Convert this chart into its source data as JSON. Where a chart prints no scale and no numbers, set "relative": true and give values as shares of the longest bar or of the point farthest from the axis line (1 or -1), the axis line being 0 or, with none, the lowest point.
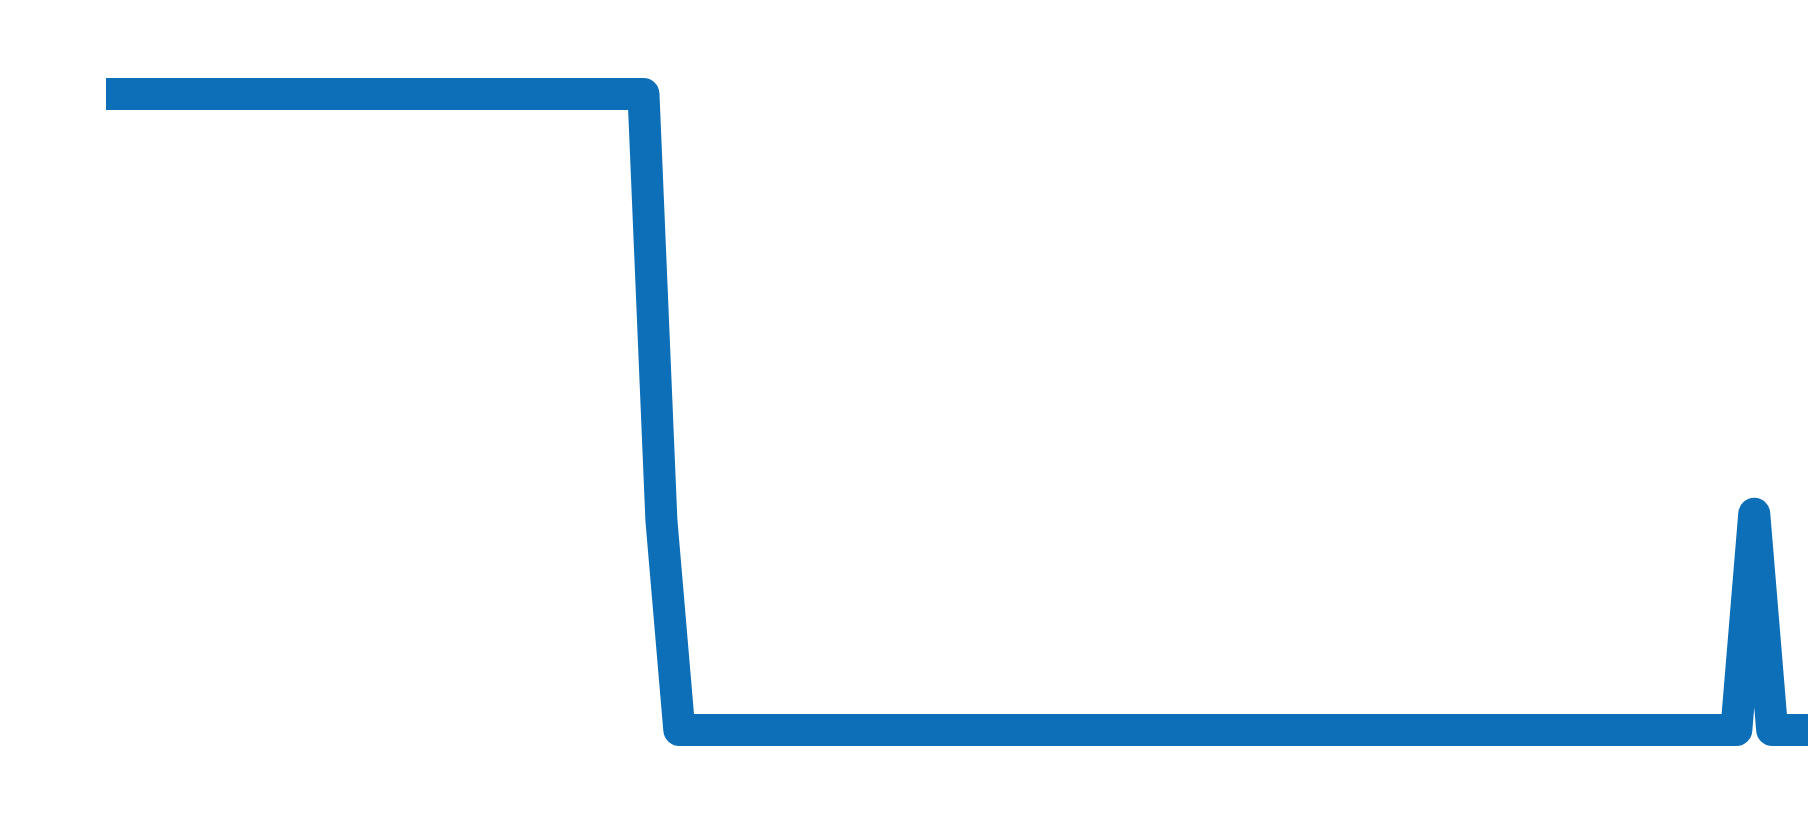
{
  "chart_data": {
    "type": "line",
    "relative": true,
    "categories": [
      null,
      null,
      null,
      null,
      null,
      null,
      null,
      null,
      null,
      null,
      null,
      null,
      null,
      null,
      null,
      null,
      null,
      null,
      null,
      null,
      null,
      null,
      null,
      null,
      null,
      null,
      null,
      null,
      null,
      null,
      null,
      null,
      null,
      null,
      null,
      null,
      null,
      null,
      null,
      null,
      null,
      null,
      null,
      null,
      null,
      null,
      null,
      null,
      null,
      null,
      null,
      null,
      null,
      null,
      null,
      null,
      null,
      null,
      null,
      null,
      null,
      null,
      null,
      null,
      null,
      null,
      null,
      null,
      null,
      null,
      null,
      null,
      null,
      null,
      null,
      null,
      null,
      null,
      null,
      null,
      null,
      null,
      null,
      null,
      null,
      null,
      null,
      null,
      null,
      null,
      null,
      null,
      null,
      null,
      null,
      null
    ],
    "series": [
      {
        "color": "#0d6fb8",
        "values": [
          1,
          1,
          1,
          1,
          1,
          1,
          1,
          1,
          1,
          1,
          1,
          1,
          1,
          1,
          1,
          1,
          1,
          1,
          1,
          1,
          1,
          1,
          1,
          1,
          1,
          1,
          1,
          1,
          1,
          1,
          1,
          0.33,
          0,
          0,
          0,
          0,
          0,
          0,
          0,
          0,
          0,
          0,
          0,
          0,
          0,
          0,
          0,
          0,
          0,
          0,
          0,
          0,
          0,
          0,
          0,
          0,
          0,
          0,
          0,
          0,
          0,
          0,
          0,
          0,
          0,
          0,
          0,
          0,
          0,
          0,
          0,
          0,
          0,
          0,
          0,
          0,
          0,
          0,
          0,
          0,
          0,
          0,
          0,
          0,
          0,
          0,
          0,
          0,
          0,
          0,
          0,
          0,
          0.34,
          0,
          0,
          0
        ]
      }
    ]
  }
}
